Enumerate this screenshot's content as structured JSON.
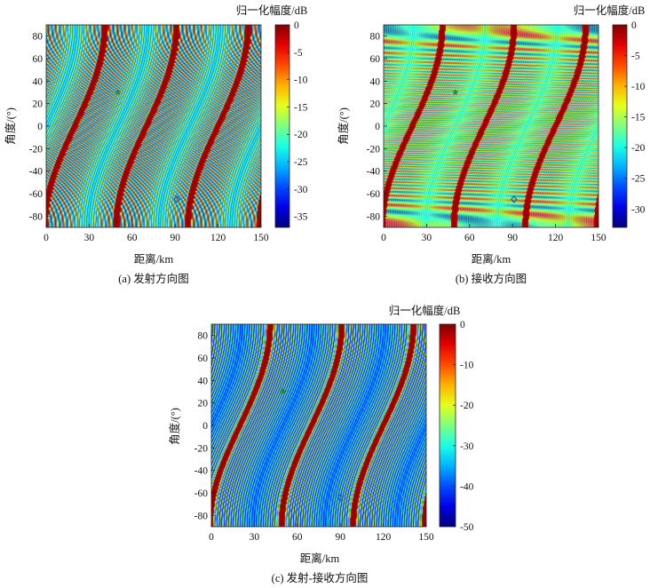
{
  "chart_data": [
    {
      "type": "heatmap",
      "caption": "(a) 发射方向图",
      "xlabel": "距离/km",
      "ylabel": "角度/(°)",
      "colorbar_label": "归一化幅度/dB",
      "xlim": [
        0,
        150
      ],
      "ylim": [
        -90,
        90
      ],
      "xticks": [
        0,
        30,
        60,
        90,
        120,
        150
      ],
      "yticks": [
        -80,
        -60,
        -40,
        -20,
        0,
        20,
        40,
        60,
        80
      ],
      "clim": [
        -37,
        0
      ],
      "cticks": [
        0,
        -5,
        -10,
        -15,
        -20,
        -25,
        -30,
        -35
      ],
      "colormap": "jet",
      "pattern": "S-shaped diagonal stripes, main lobes dark red, sidelobes orange/yellow, nulls green/cyan",
      "markers": [
        {
          "shape": "star",
          "x": 50,
          "y": 30,
          "color": "#2e9a2e"
        },
        {
          "shape": "diamond",
          "x": 91,
          "y": -65,
          "color": "#1565c0"
        }
      ]
    },
    {
      "type": "heatmap",
      "caption": "(b) 接收方向图",
      "xlabel": "距离/km",
      "ylabel": "角度/(°)",
      "colorbar_label": "归一化幅度/dB",
      "xlim": [
        0,
        150
      ],
      "ylim": [
        -90,
        90
      ],
      "xticks": [
        0,
        30,
        60,
        90,
        120,
        150
      ],
      "yticks": [
        -80,
        -60,
        -40,
        -20,
        0,
        20,
        40,
        60,
        80
      ],
      "clim": [
        -33,
        0
      ],
      "cticks": [
        0,
        -5,
        -10,
        -15,
        -20,
        -25,
        -30
      ],
      "colormap": "jet",
      "pattern": "S-shaped diagonal stripes, main lobes dark red, finer sidelobes",
      "markers": [
        {
          "shape": "star",
          "x": 50,
          "y": 30,
          "color": "#2e9a2e"
        },
        {
          "shape": "diamond",
          "x": 91,
          "y": -65,
          "color": "#1565c0"
        }
      ]
    },
    {
      "type": "heatmap",
      "caption": "(c) 发射-接收方向图",
      "xlabel": "距离/km",
      "ylabel": "角度/(°)",
      "colorbar_label": "归一化幅度/dB",
      "xlim": [
        0,
        150
      ],
      "ylim": [
        -90,
        90
      ],
      "xticks": [
        0,
        30,
        60,
        90,
        120,
        150
      ],
      "yticks": [
        -80,
        -60,
        -40,
        -20,
        0,
        20,
        40,
        60,
        80
      ],
      "clim": [
        -50,
        0
      ],
      "cticks": [
        0,
        -10,
        -20,
        -30,
        -40,
        -50
      ],
      "colormap": "jet",
      "pattern": "S-shaped diagonal stripes, main lobes dark red, sidelobes yellow/cyan",
      "markers": [
        {
          "shape": "star",
          "x": 50,
          "y": 30,
          "color": "#2e9a2e"
        },
        {
          "shape": "diamond",
          "x": 90,
          "y": -64,
          "color": "#1565c0"
        }
      ]
    }
  ]
}
